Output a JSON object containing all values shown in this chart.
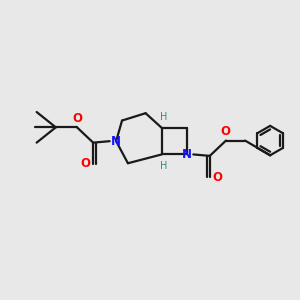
{
  "background_color": "#e8e8e8",
  "bond_color": "#1a1a1a",
  "N_color": "#1414ff",
  "O_color": "#ff0000",
  "H_stereo_color": "#2e8b8b",
  "line_width": 1.6,
  "fig_size": [
    3.0,
    3.0
  ],
  "dpi": 100,
  "xlim": [
    0,
    10
  ],
  "ylim": [
    0,
    10
  ]
}
